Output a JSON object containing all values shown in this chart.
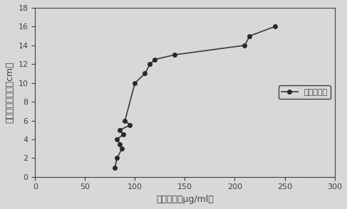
{
  "x_values": [
    80,
    82,
    87,
    85,
    82,
    88,
    85,
    95,
    90,
    100,
    110,
    115,
    120,
    140,
    210,
    215,
    240
  ],
  "y_values": [
    1,
    2,
    3,
    3.5,
    4,
    4.5,
    5,
    5.5,
    6,
    10,
    11,
    12,
    12.5,
    13,
    14,
    15,
    16
  ],
  "xlim": [
    0,
    300
  ],
  "ylim": [
    0,
    18
  ],
  "xticks": [
    0,
    50,
    100,
    150,
    200,
    250,
    300
  ],
  "yticks": [
    0,
    2,
    4,
    6,
    8,
    10,
    12,
    14,
    16,
    18
  ],
  "xlabel": "蛋白浓度（μg/ml）",
  "ylabel": "距出水口的距离（cm）",
  "legend_label": "加二氧化氯",
  "line_color": "#3a3a3a",
  "marker": "o",
  "marker_size": 4,
  "marker_color": "#2a2a2a",
  "linewidth": 1.2,
  "background_color": "#d8d8d8",
  "axes_color": "#d8d8d8",
  "text_color": "#404040",
  "font_size": 9,
  "tick_fontsize": 8,
  "legend_fontsize": 8
}
